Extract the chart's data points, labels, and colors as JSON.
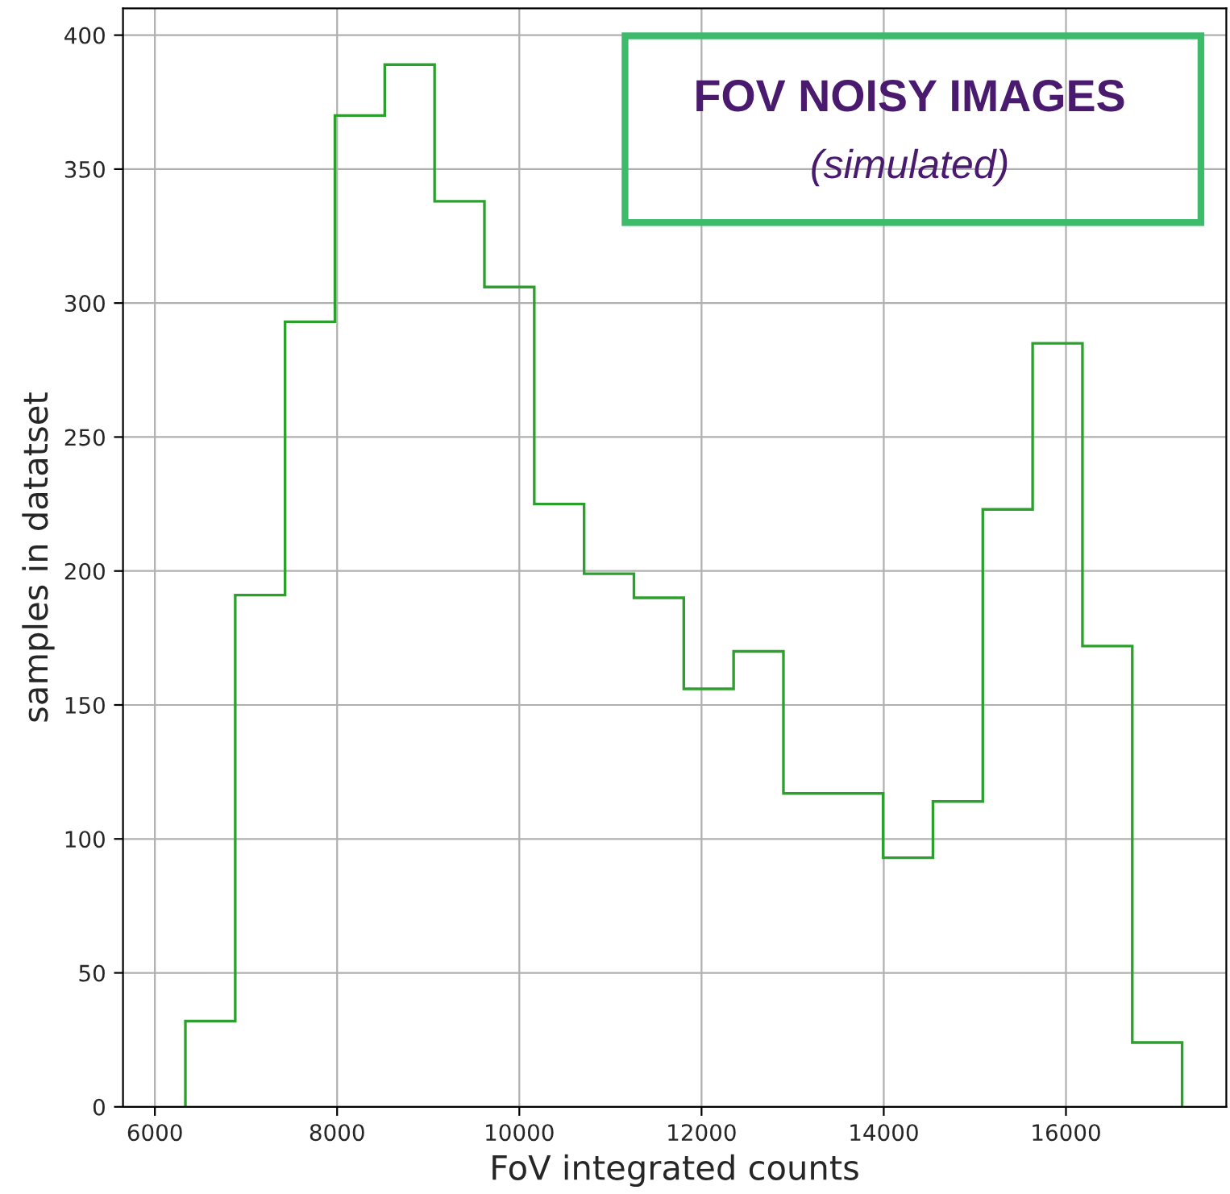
{
  "chart_data": {
    "type": "histogram",
    "xlabel": "FoV integrated counts",
    "ylabel": "samples in datatset",
    "bins": [
      6335,
      6882,
      7429,
      7976,
      8523,
      9070,
      9617,
      10164,
      10711,
      11258,
      11805,
      12352,
      12899,
      13446,
      13993,
      14540,
      15087,
      15634,
      16181,
      16728,
      17275
    ],
    "values": [
      32,
      191,
      293,
      370,
      389,
      338,
      306,
      225,
      199,
      190,
      156,
      170,
      117,
      117,
      93,
      114,
      223,
      285,
      172,
      24
    ],
    "color": "#2ca02c",
    "xlim": [
      5650,
      17760
    ],
    "ylim": [
      0,
      410
    ],
    "xticks": [
      6000,
      8000,
      10000,
      12000,
      14000,
      16000
    ],
    "yticks": [
      0,
      50,
      100,
      150,
      200,
      250,
      300,
      350,
      400
    ],
    "grid": true,
    "annotations": [
      "FOV NOISY IMAGES",
      "(simulated)"
    ]
  }
}
